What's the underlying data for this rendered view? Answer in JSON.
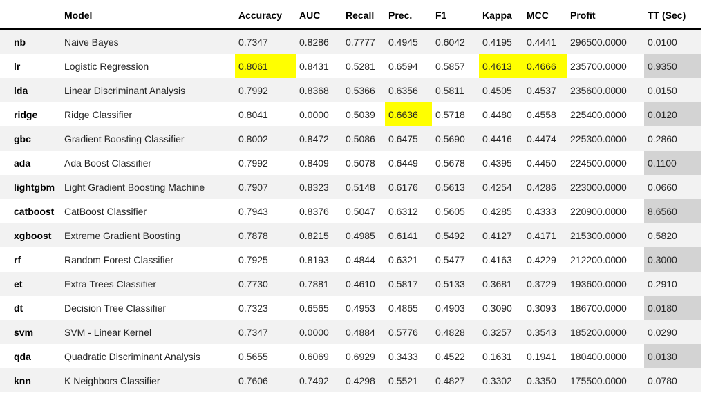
{
  "table": {
    "columns": [
      {
        "key": "index",
        "label": ""
      },
      {
        "key": "model",
        "label": "Model"
      },
      {
        "key": "accuracy",
        "label": "Accuracy"
      },
      {
        "key": "auc",
        "label": "AUC"
      },
      {
        "key": "recall",
        "label": "Recall"
      },
      {
        "key": "prec",
        "label": "Prec."
      },
      {
        "key": "f1",
        "label": "F1"
      },
      {
        "key": "kappa",
        "label": "Kappa"
      },
      {
        "key": "mcc",
        "label": "MCC"
      },
      {
        "key": "profit",
        "label": "Profit"
      },
      {
        "key": "tt",
        "label": "TT (Sec)"
      }
    ],
    "highlight_color": "#ffff00",
    "tt_column_color": "#d3d3d3",
    "stripe_color": "#f2f2f2",
    "rows": [
      {
        "index": "nb",
        "model": "Naive Bayes",
        "accuracy": "0.7347",
        "auc": "0.8286",
        "recall": "0.7777",
        "prec": "0.4945",
        "f1": "0.6042",
        "kappa": "0.4195",
        "mcc": "0.4441",
        "profit": "296500.0000",
        "tt": "0.0100",
        "highlights": [
          "recall",
          "f1",
          "profit"
        ]
      },
      {
        "index": "lr",
        "model": "Logistic Regression",
        "accuracy": "0.8061",
        "auc": "0.8431",
        "recall": "0.5281",
        "prec": "0.6594",
        "f1": "0.5857",
        "kappa": "0.4613",
        "mcc": "0.4666",
        "profit": "235700.0000",
        "tt": "0.9350",
        "highlights": [
          "accuracy",
          "kappa",
          "mcc"
        ]
      },
      {
        "index": "lda",
        "model": "Linear Discriminant Analysis",
        "accuracy": "0.7992",
        "auc": "0.8368",
        "recall": "0.5366",
        "prec": "0.6356",
        "f1": "0.5811",
        "kappa": "0.4505",
        "mcc": "0.4537",
        "profit": "235600.0000",
        "tt": "0.0150",
        "highlights": []
      },
      {
        "index": "ridge",
        "model": "Ridge Classifier",
        "accuracy": "0.8041",
        "auc": "0.0000",
        "recall": "0.5039",
        "prec": "0.6636",
        "f1": "0.5718",
        "kappa": "0.4480",
        "mcc": "0.4558",
        "profit": "225400.0000",
        "tt": "0.0120",
        "highlights": [
          "prec"
        ]
      },
      {
        "index": "gbc",
        "model": "Gradient Boosting Classifier",
        "accuracy": "0.8002",
        "auc": "0.8472",
        "recall": "0.5086",
        "prec": "0.6475",
        "f1": "0.5690",
        "kappa": "0.4416",
        "mcc": "0.4474",
        "profit": "225300.0000",
        "tt": "0.2860",
        "highlights": [
          "auc"
        ]
      },
      {
        "index": "ada",
        "model": "Ada Boost Classifier",
        "accuracy": "0.7992",
        "auc": "0.8409",
        "recall": "0.5078",
        "prec": "0.6449",
        "f1": "0.5678",
        "kappa": "0.4395",
        "mcc": "0.4450",
        "profit": "224500.0000",
        "tt": "0.1100",
        "highlights": []
      },
      {
        "index": "lightgbm",
        "model": "Light Gradient Boosting Machine",
        "accuracy": "0.7907",
        "auc": "0.8323",
        "recall": "0.5148",
        "prec": "0.6176",
        "f1": "0.5613",
        "kappa": "0.4254",
        "mcc": "0.4286",
        "profit": "223000.0000",
        "tt": "0.0660",
        "highlights": []
      },
      {
        "index": "catboost",
        "model": "CatBoost Classifier",
        "accuracy": "0.7943",
        "auc": "0.8376",
        "recall": "0.5047",
        "prec": "0.6312",
        "f1": "0.5605",
        "kappa": "0.4285",
        "mcc": "0.4333",
        "profit": "220900.0000",
        "tt": "8.6560",
        "highlights": []
      },
      {
        "index": "xgboost",
        "model": "Extreme Gradient Boosting",
        "accuracy": "0.7878",
        "auc": "0.8215",
        "recall": "0.4985",
        "prec": "0.6141",
        "f1": "0.5492",
        "kappa": "0.4127",
        "mcc": "0.4171",
        "profit": "215300.0000",
        "tt": "0.5820",
        "highlights": []
      },
      {
        "index": "rf",
        "model": "Random Forest Classifier",
        "accuracy": "0.7925",
        "auc": "0.8193",
        "recall": "0.4844",
        "prec": "0.6321",
        "f1": "0.5477",
        "kappa": "0.4163",
        "mcc": "0.4229",
        "profit": "212200.0000",
        "tt": "0.3000",
        "highlights": []
      },
      {
        "index": "et",
        "model": "Extra Trees Classifier",
        "accuracy": "0.7730",
        "auc": "0.7881",
        "recall": "0.4610",
        "prec": "0.5817",
        "f1": "0.5133",
        "kappa": "0.3681",
        "mcc": "0.3729",
        "profit": "193600.0000",
        "tt": "0.2910",
        "highlights": []
      },
      {
        "index": "dt",
        "model": "Decision Tree Classifier",
        "accuracy": "0.7323",
        "auc": "0.6565",
        "recall": "0.4953",
        "prec": "0.4865",
        "f1": "0.4903",
        "kappa": "0.3090",
        "mcc": "0.3093",
        "profit": "186700.0000",
        "tt": "0.0180",
        "highlights": []
      },
      {
        "index": "svm",
        "model": "SVM - Linear Kernel",
        "accuracy": "0.7347",
        "auc": "0.0000",
        "recall": "0.4884",
        "prec": "0.5776",
        "f1": "0.4828",
        "kappa": "0.3257",
        "mcc": "0.3543",
        "profit": "185200.0000",
        "tt": "0.0290",
        "highlights": []
      },
      {
        "index": "qda",
        "model": "Quadratic Discriminant Analysis",
        "accuracy": "0.5655",
        "auc": "0.6069",
        "recall": "0.6929",
        "prec": "0.3433",
        "f1": "0.4522",
        "kappa": "0.1631",
        "mcc": "0.1941",
        "profit": "180400.0000",
        "tt": "0.0130",
        "highlights": []
      },
      {
        "index": "knn",
        "model": "K Neighbors Classifier",
        "accuracy": "0.7606",
        "auc": "0.7492",
        "recall": "0.4298",
        "prec": "0.5521",
        "f1": "0.4827",
        "kappa": "0.3302",
        "mcc": "0.3350",
        "profit": "175500.0000",
        "tt": "0.0780",
        "highlights": []
      }
    ]
  },
  "chart_data": {
    "type": "table",
    "title": "Model comparison metrics (highlight = best value per metric column)",
    "columns": [
      "",
      "Model",
      "Accuracy",
      "AUC",
      "Recall",
      "Prec.",
      "F1",
      "Kappa",
      "MCC",
      "Profit",
      "TT (Sec)"
    ],
    "rows": [
      [
        "nb",
        "Naive Bayes",
        0.7347,
        0.8286,
        0.7777,
        0.4945,
        0.6042,
        0.4195,
        0.4441,
        296500.0,
        0.01
      ],
      [
        "lr",
        "Logistic Regression",
        0.8061,
        0.8431,
        0.5281,
        0.6594,
        0.5857,
        0.4613,
        0.4666,
        235700.0,
        0.935
      ],
      [
        "lda",
        "Linear Discriminant Analysis",
        0.7992,
        0.8368,
        0.5366,
        0.6356,
        0.5811,
        0.4505,
        0.4537,
        235600.0,
        0.015
      ],
      [
        "ridge",
        "Ridge Classifier",
        0.8041,
        0.0,
        0.5039,
        0.6636,
        0.5718,
        0.448,
        0.4558,
        225400.0,
        0.012
      ],
      [
        "gbc",
        "Gradient Boosting Classifier",
        0.8002,
        0.8472,
        0.5086,
        0.6475,
        0.569,
        0.4416,
        0.4474,
        225300.0,
        0.286
      ],
      [
        "ada",
        "Ada Boost Classifier",
        0.7992,
        0.8409,
        0.5078,
        0.6449,
        0.5678,
        0.4395,
        0.445,
        224500.0,
        0.11
      ],
      [
        "lightgbm",
        "Light Gradient Boosting Machine",
        0.7907,
        0.8323,
        0.5148,
        0.6176,
        0.5613,
        0.4254,
        0.4286,
        223000.0,
        0.066
      ],
      [
        "catboost",
        "CatBoost Classifier",
        0.7943,
        0.8376,
        0.5047,
        0.6312,
        0.5605,
        0.4285,
        0.4333,
        220900.0,
        8.656
      ],
      [
        "xgboost",
        "Extreme Gradient Boosting",
        0.7878,
        0.8215,
        0.4985,
        0.6141,
        0.5492,
        0.4127,
        0.4171,
        215300.0,
        0.582
      ],
      [
        "rf",
        "Random Forest Classifier",
        0.7925,
        0.8193,
        0.4844,
        0.6321,
        0.5477,
        0.4163,
        0.4229,
        212200.0,
        0.3
      ],
      [
        "et",
        "Extra Trees Classifier",
        0.773,
        0.7881,
        0.461,
        0.5817,
        0.5133,
        0.3681,
        0.3729,
        193600.0,
        0.291
      ],
      [
        "dt",
        "Decision Tree Classifier",
        0.7323,
        0.6565,
        0.4953,
        0.4865,
        0.4903,
        0.309,
        0.3093,
        186700.0,
        0.018
      ],
      [
        "svm",
        "SVM - Linear Kernel",
        0.7347,
        0.0,
        0.4884,
        0.5776,
        0.4828,
        0.3257,
        0.3543,
        185200.0,
        0.029
      ],
      [
        "qda",
        "Quadratic Discriminant Analysis",
        0.5655,
        0.6069,
        0.6929,
        0.3433,
        0.4522,
        0.1631,
        0.1941,
        180400.0,
        0.013
      ],
      [
        "knn",
        "K Neighbors Classifier",
        0.7606,
        0.7492,
        0.4298,
        0.5521,
        0.4827,
        0.3302,
        0.335,
        175500.0,
        0.078
      ]
    ],
    "highlighted_cells": [
      {
        "row": "nb",
        "column": "Recall"
      },
      {
        "row": "nb",
        "column": "F1"
      },
      {
        "row": "nb",
        "column": "Profit"
      },
      {
        "row": "lr",
        "column": "Accuracy"
      },
      {
        "row": "lr",
        "column": "Kappa"
      },
      {
        "row": "lr",
        "column": "MCC"
      },
      {
        "row": "ridge",
        "column": "Prec."
      },
      {
        "row": "gbc",
        "column": "AUC"
      }
    ],
    "layout": {
      "tt_column_shaded": true,
      "alternating_row_stripes": true,
      "grid": false,
      "legend": "none"
    }
  }
}
